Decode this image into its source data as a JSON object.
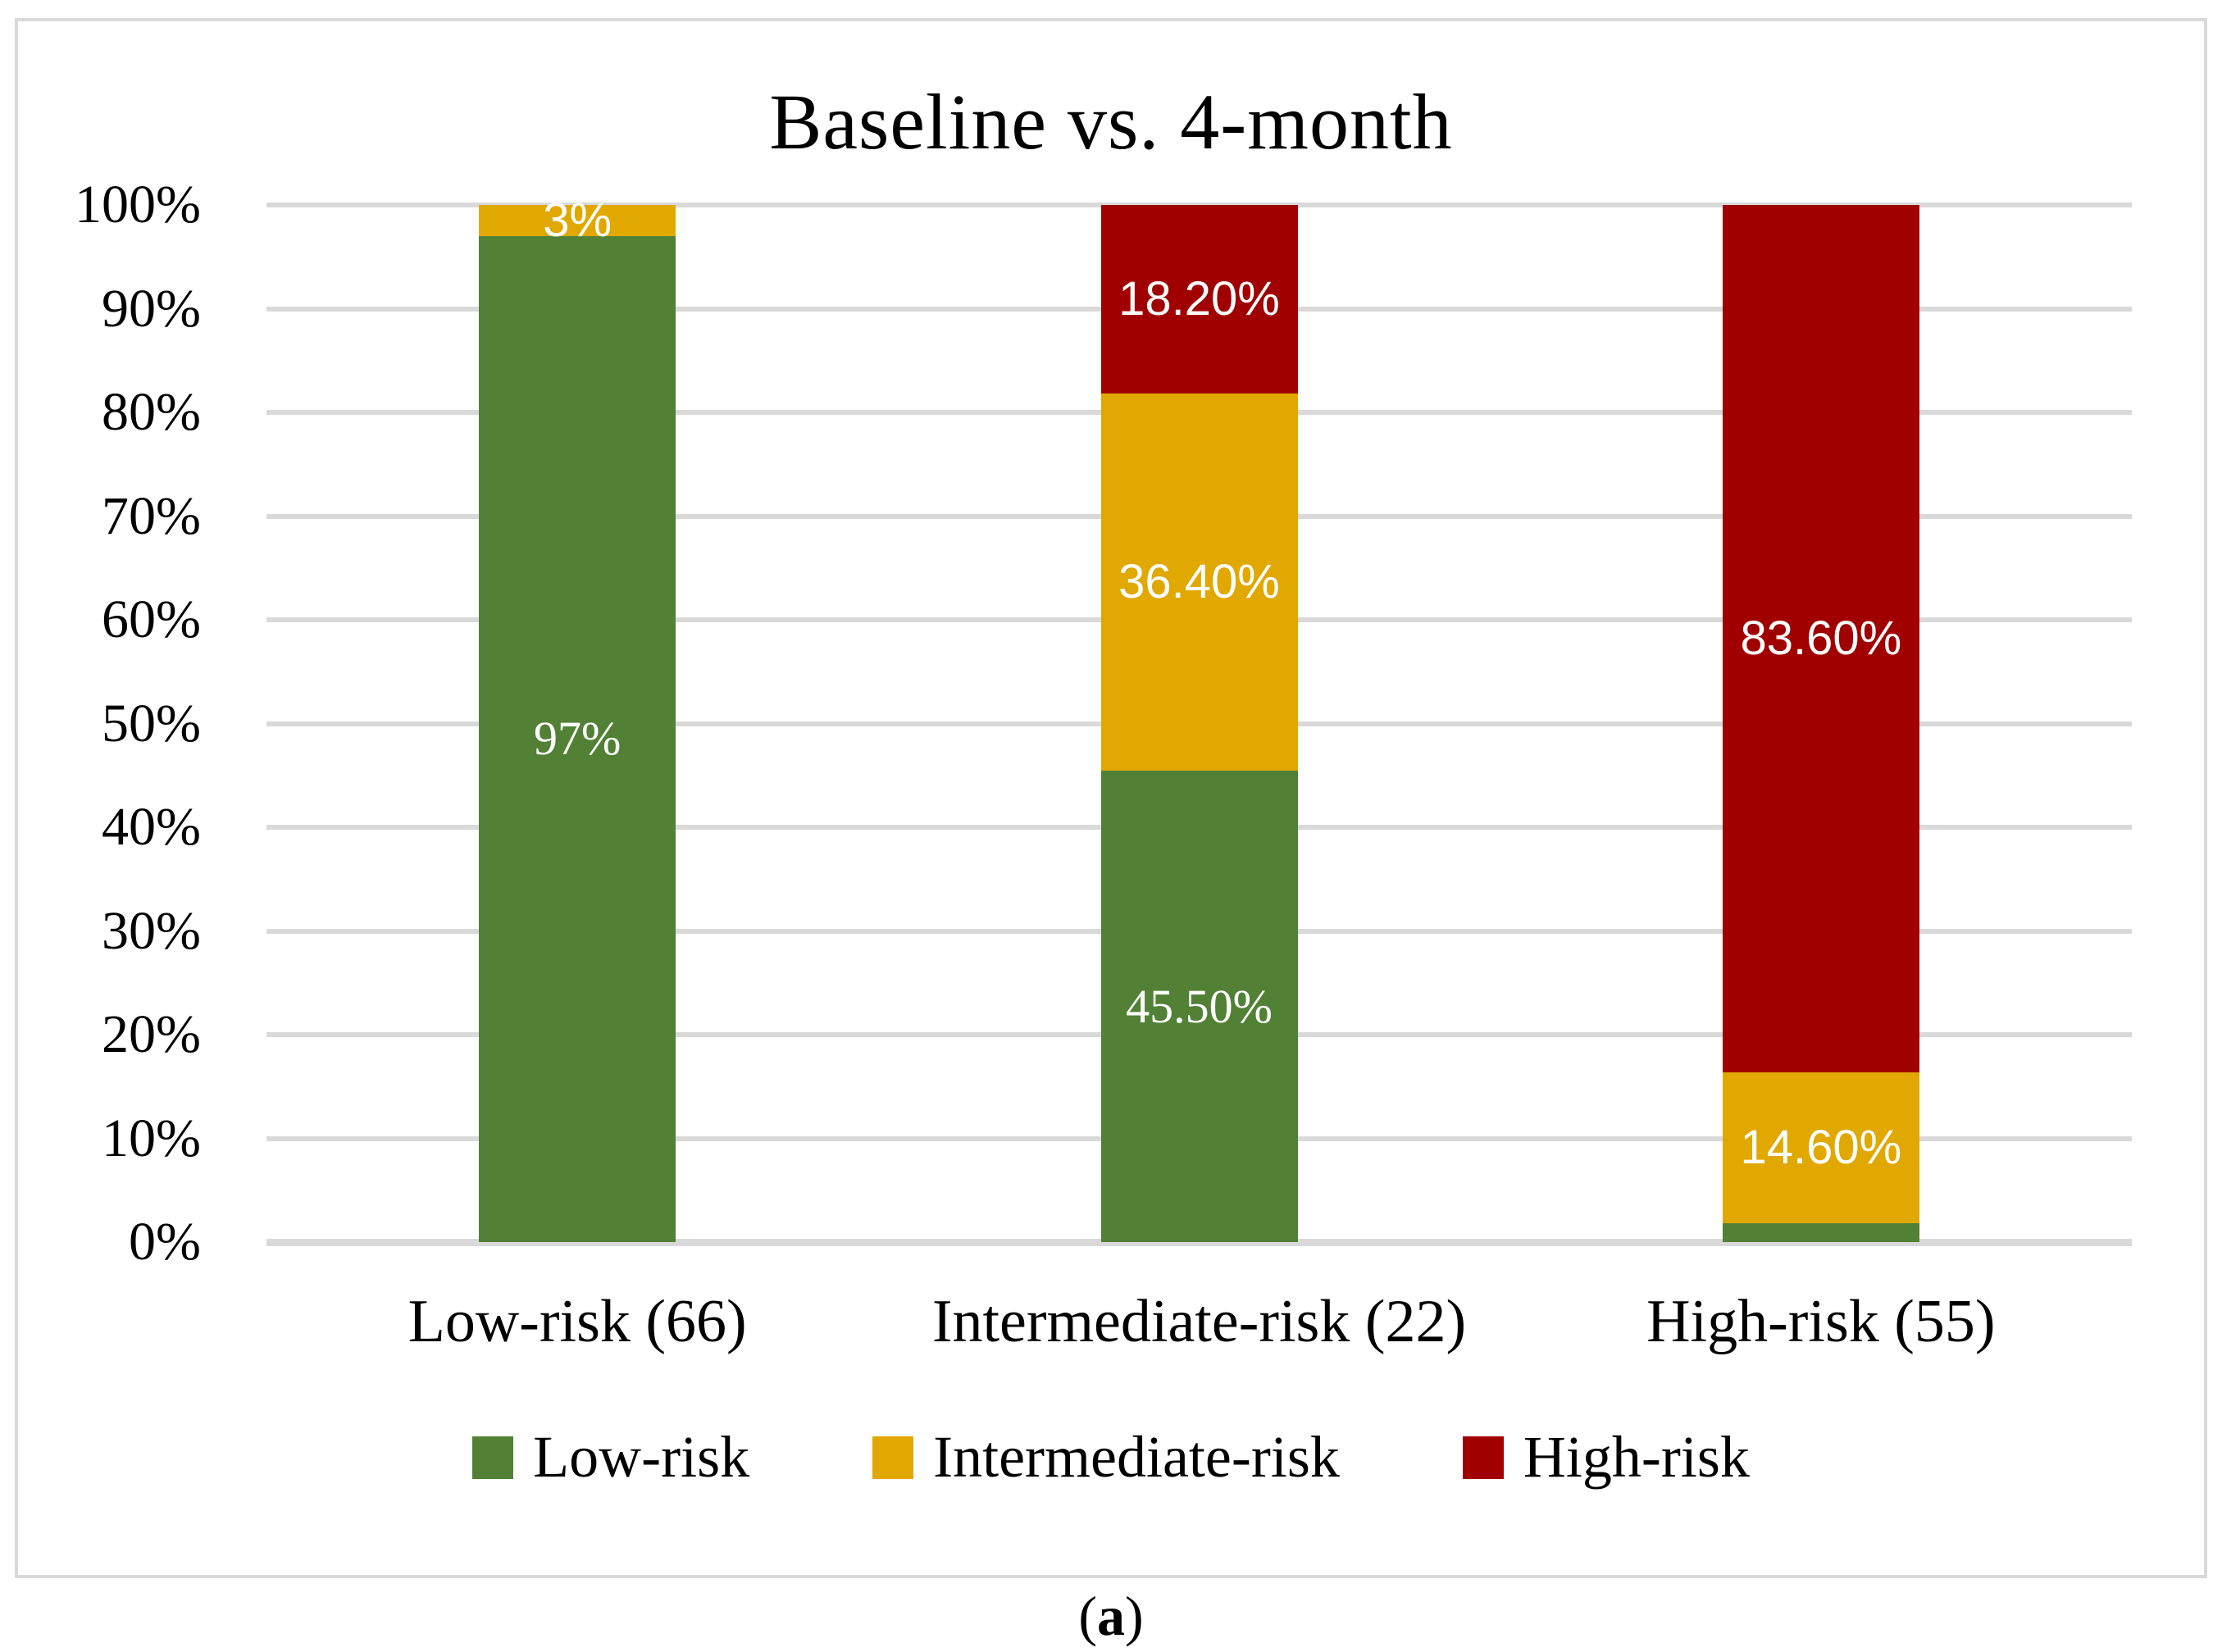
{
  "figure": {
    "caption": {
      "open": "(",
      "letter": "a",
      "close": ")"
    }
  },
  "chart_data": {
    "type": "bar",
    "subtype": "stacked-percentage",
    "title": "Baseline vs. 4-month",
    "categories": [
      "Low-risk (66)",
      "Intermediate-risk (22)",
      "High-risk (55)"
    ],
    "series": [
      {
        "name": "Low-risk",
        "color": "#528135",
        "values": [
          97.0,
          45.5,
          1.8
        ],
        "labels": [
          "97%",
          "45.50%",
          ""
        ]
      },
      {
        "name": "Intermediate-risk",
        "color": "#E0A800",
        "values": [
          3.0,
          36.4,
          14.6
        ],
        "labels": [
          "3%",
          "36.40%",
          "14.60%"
        ]
      },
      {
        "name": "High-risk",
        "color": "#A00000",
        "values": [
          0.0,
          18.2,
          83.6
        ],
        "labels": [
          "",
          "18.20%",
          "83.60%"
        ]
      }
    ],
    "y_axis": {
      "min": 0,
      "max": 100,
      "grid": true,
      "ticks": [
        "0%",
        "10%",
        "20%",
        "30%",
        "40%",
        "50%",
        "60%",
        "70%",
        "80%",
        "90%",
        "100%"
      ]
    },
    "legend": {
      "position": "bottom",
      "entries": [
        "Low-risk",
        "Intermediate-risk",
        "High-risk"
      ]
    }
  },
  "colors": {
    "gridline": "#D9D9D9",
    "frame_border": "#D9D9D9",
    "axis_text": "#000000",
    "bar_label_text": "#FFFFFF"
  }
}
